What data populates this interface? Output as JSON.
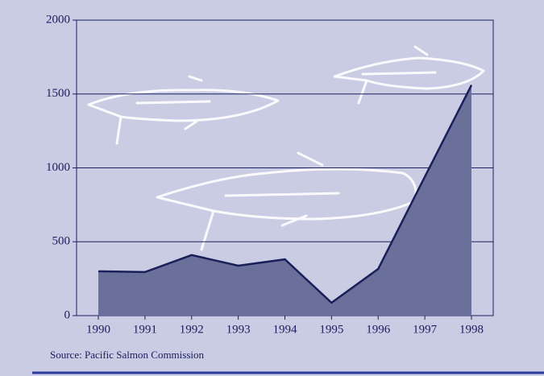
{
  "chart_data": {
    "type": "area",
    "categories": [
      "1990",
      "1991",
      "1992",
      "1993",
      "1994",
      "1995",
      "1996",
      "1997",
      "1998"
    ],
    "values": [
      300,
      295,
      410,
      338,
      381,
      87,
      316,
      940,
      1560
    ],
    "color": "#6a7099",
    "line_color": "#1a1f5a",
    "ylim": [
      0,
      2000
    ],
    "yticks": [
      0,
      500,
      1000,
      1500,
      2000
    ],
    "grid": true,
    "source": "Source: Pacific Salmon Commission"
  }
}
